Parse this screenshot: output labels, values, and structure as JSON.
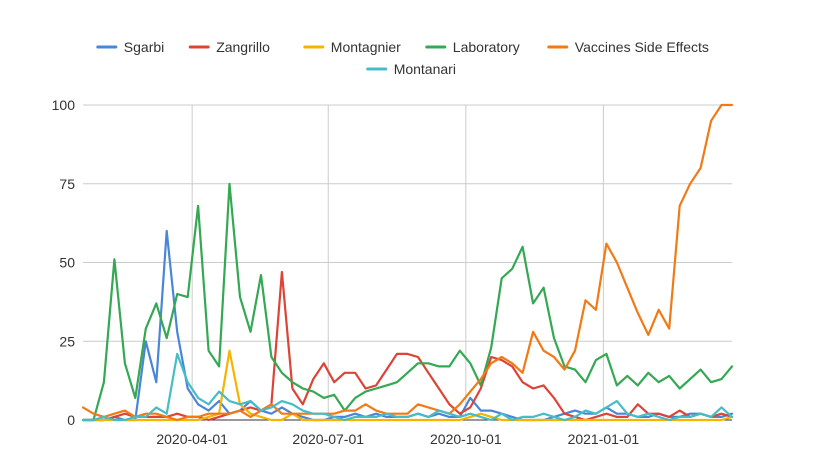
{
  "chart_data": {
    "type": "line",
    "title": "",
    "xlabel": "",
    "ylabel": "",
    "ylim": [
      0,
      100
    ],
    "y_ticks": [
      "0",
      "25",
      "50",
      "75",
      "100"
    ],
    "x_ticks": [
      "2020-04-01",
      "2020-07-01",
      "2020-10-01",
      "2021-01-01"
    ],
    "x_tick_dates": [
      "2020-04-01",
      "2020-07-01",
      "2020-10-01",
      "2021-01-01"
    ],
    "x_start": "2020-01-19",
    "x_end": "2021-03-28",
    "grid": true,
    "legend_position": "top",
    "x": [
      "2020-01-19",
      "2020-01-26",
      "2020-02-02",
      "2020-02-09",
      "2020-02-16",
      "2020-02-23",
      "2020-03-01",
      "2020-03-08",
      "2020-03-15",
      "2020-03-22",
      "2020-03-29",
      "2020-04-05",
      "2020-04-12",
      "2020-04-19",
      "2020-04-26",
      "2020-05-03",
      "2020-05-10",
      "2020-05-17",
      "2020-05-24",
      "2020-05-31",
      "2020-06-07",
      "2020-06-14",
      "2020-06-21",
      "2020-06-28",
      "2020-07-05",
      "2020-07-12",
      "2020-07-19",
      "2020-07-26",
      "2020-08-02",
      "2020-08-09",
      "2020-08-16",
      "2020-08-23",
      "2020-08-30",
      "2020-09-06",
      "2020-09-13",
      "2020-09-20",
      "2020-09-27",
      "2020-10-04",
      "2020-10-11",
      "2020-10-18",
      "2020-10-25",
      "2020-11-01",
      "2020-11-08",
      "2020-11-15",
      "2020-11-22",
      "2020-11-29",
      "2020-12-06",
      "2020-12-13",
      "2020-12-20",
      "2020-12-27",
      "2021-01-03",
      "2021-01-10",
      "2021-01-17",
      "2021-01-24",
      "2021-01-31",
      "2021-02-07",
      "2021-02-14",
      "2021-02-21",
      "2021-02-28",
      "2021-03-07",
      "2021-03-14",
      "2021-03-21",
      "2021-03-28"
    ],
    "series": [
      {
        "name": "Sgarbi",
        "color": "#4a86d8",
        "values": [
          0,
          0,
          0,
          1,
          0,
          0,
          25,
          12,
          60,
          28,
          10,
          5,
          3,
          6,
          2,
          3,
          6,
          3,
          2,
          4,
          2,
          1,
          0,
          0,
          1,
          1,
          2,
          1,
          2,
          1,
          1,
          1,
          2,
          1,
          2,
          1,
          1,
          7,
          3,
          3,
          2,
          1,
          0,
          0,
          0,
          1,
          2,
          3,
          2,
          2,
          4,
          2,
          2,
          1,
          1,
          2,
          1,
          1,
          2,
          2,
          1,
          1,
          2
        ]
      },
      {
        "name": "Zangrillo",
        "color": "#db4437",
        "values": [
          0,
          0,
          0,
          1,
          2,
          1,
          1,
          1,
          1,
          2,
          1,
          1,
          0,
          1,
          2,
          3,
          4,
          3,
          5,
          47,
          10,
          5,
          13,
          18,
          12,
          15,
          15,
          10,
          11,
          16,
          21,
          21,
          20,
          15,
          10,
          5,
          2,
          4,
          10,
          20,
          19,
          17,
          12,
          10,
          11,
          7,
          2,
          1,
          0,
          1,
          2,
          1,
          1,
          5,
          2,
          2,
          1,
          3,
          1,
          2,
          1,
          2,
          1
        ]
      },
      {
        "name": "Montagnier",
        "color": "#f4b400",
        "values": [
          0,
          0,
          0,
          0,
          0,
          0,
          0,
          0,
          0,
          0,
          0,
          0,
          1,
          2,
          22,
          5,
          2,
          1,
          0,
          0,
          2,
          0,
          0,
          0,
          0,
          0,
          0,
          0,
          0,
          0,
          0,
          0,
          0,
          0,
          0,
          0,
          0,
          1,
          2,
          1,
          0,
          0,
          0,
          0,
          0,
          0,
          0,
          0,
          0,
          0,
          0,
          0,
          0,
          0,
          0,
          0,
          0,
          0,
          0,
          0,
          0,
          0,
          1
        ]
      },
      {
        "name": "Laboratory",
        "color": "#34a853",
        "values": [
          0,
          0,
          12,
          51,
          18,
          7,
          29,
          37,
          26,
          40,
          39,
          68,
          22,
          17,
          75,
          39,
          28,
          46,
          20,
          15,
          12,
          10,
          9,
          7,
          8,
          3,
          7,
          9,
          10,
          11,
          12,
          15,
          18,
          18,
          17,
          17,
          22,
          18,
          11,
          23,
          45,
          48,
          55,
          37,
          42,
          26,
          17,
          16,
          12,
          19,
          21,
          11,
          14,
          11,
          15,
          12,
          14,
          10,
          13,
          16,
          12,
          13,
          17
        ]
      },
      {
        "name": "Vaccines Side Effects",
        "color": "#f07a16",
        "values": [
          4,
          2,
          1,
          2,
          3,
          1,
          2,
          2,
          1,
          0,
          1,
          1,
          2,
          2,
          2,
          3,
          1,
          3,
          5,
          2,
          2,
          2,
          2,
          2,
          2,
          3,
          3,
          5,
          3,
          2,
          2,
          2,
          5,
          4,
          3,
          2,
          5,
          9,
          13,
          18,
          20,
          18,
          15,
          28,
          22,
          20,
          16,
          22,
          38,
          35,
          56,
          50,
          42,
          34,
          27,
          35,
          29,
          68,
          75,
          80,
          95,
          100,
          100
        ]
      },
      {
        "name": "Montanari",
        "color": "#46bdc6",
        "values": [
          0,
          0,
          1,
          0,
          0,
          1,
          1,
          4,
          2,
          21,
          12,
          7,
          5,
          9,
          6,
          5,
          6,
          3,
          4,
          6,
          5,
          3,
          2,
          2,
          1,
          0,
          1,
          1,
          1,
          2,
          1,
          1,
          2,
          1,
          3,
          2,
          1,
          2,
          1,
          0,
          2,
          0,
          1,
          1,
          2,
          1,
          0,
          1,
          3,
          2,
          4,
          6,
          2,
          1,
          2,
          1,
          0,
          1,
          1,
          2,
          1,
          4,
          1
        ]
      }
    ]
  }
}
